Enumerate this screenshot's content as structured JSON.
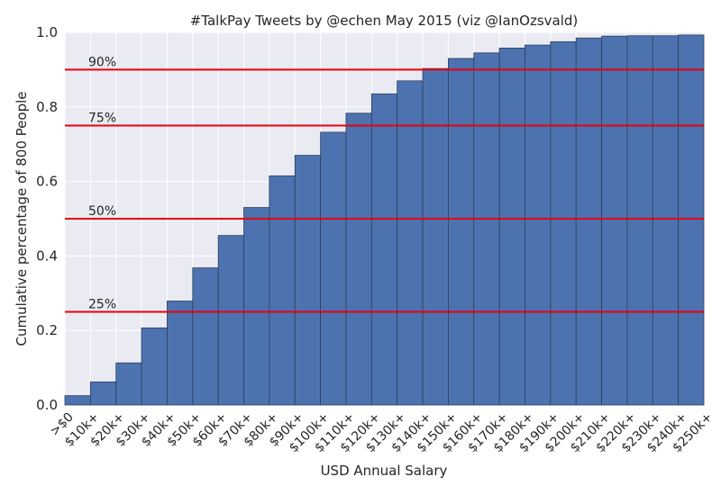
{
  "chart_data": {
    "type": "bar",
    "title": "#TalkPay Tweets by @echen May 2015 (viz @IanOzsvald)",
    "xlabel": "USD Annual Salary",
    "ylabel": "Cumulative percentage of 800 People",
    "ylim": [
      0,
      1.0
    ],
    "yticks": [
      "0.0",
      "0.2",
      "0.4",
      "0.6",
      "0.8",
      "1.0"
    ],
    "categories": [
      ">$0",
      "$10k+",
      "$20k+",
      "$30k+",
      "$40k+",
      "$50k+",
      "$60k+",
      "$70k+",
      "$80k+",
      "$90k+",
      "$100k+",
      "$110k+",
      "$120k+",
      "$130k+",
      "$140k+",
      "$150k+",
      "$160k+",
      "$170k+",
      "$180k+",
      "$190k+",
      "$200k+",
      "$210k+",
      "$220k+",
      "$230k+",
      "$240k+",
      "$250k+"
    ],
    "values": [
      0.025,
      0.062,
      0.113,
      0.207,
      0.279,
      0.368,
      0.455,
      0.53,
      0.615,
      0.67,
      0.732,
      0.783,
      0.835,
      0.87,
      0.903,
      0.93,
      0.945,
      0.958,
      0.966,
      0.975,
      0.985,
      0.99,
      0.991,
      0.991,
      0.993,
      1.0
    ],
    "reference_lines": [
      {
        "value": 0.9,
        "label": "90%"
      },
      {
        "value": 0.75,
        "label": "75%"
      },
      {
        "value": 0.5,
        "label": "50%"
      },
      {
        "value": 0.25,
        "label": "25%"
      }
    ],
    "grid": true,
    "colors": {
      "bar": "#4c72b0",
      "bar_edge": "#2f3f5c",
      "background": "#eaeaf2",
      "grid": "#ffffff",
      "reference_line": "#e8000b"
    }
  }
}
